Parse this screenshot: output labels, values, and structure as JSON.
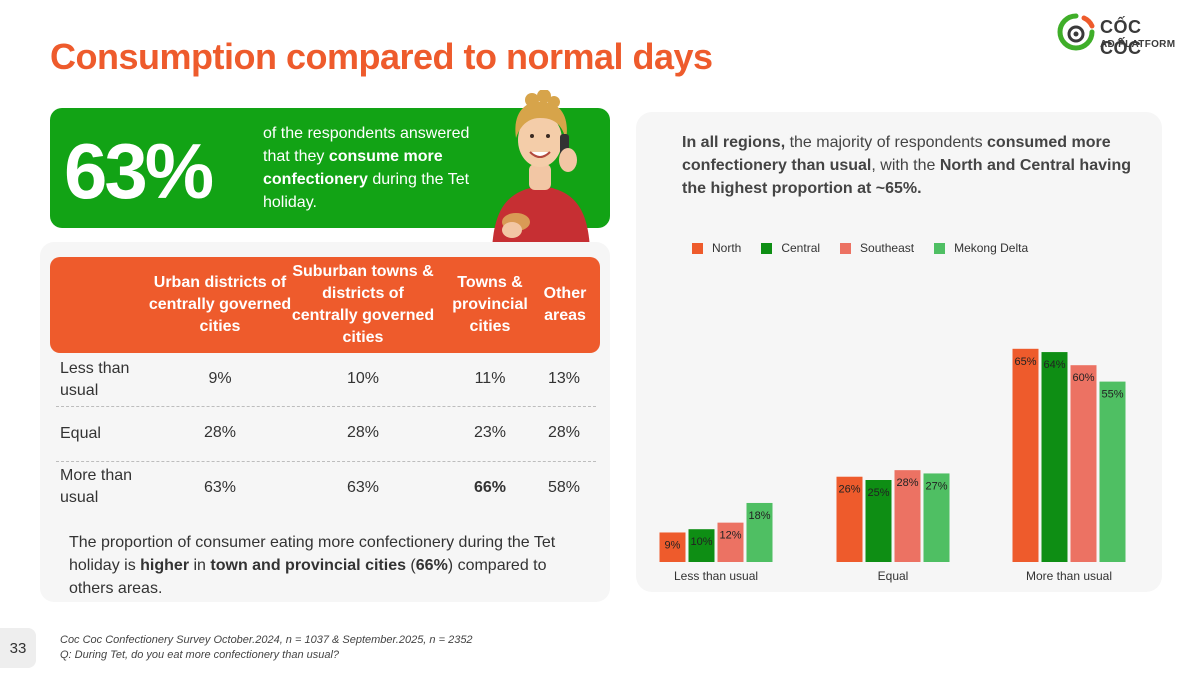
{
  "header": {
    "title": "Consumption compared to normal days"
  },
  "logo": {
    "name": "CỐC CỐC",
    "sub": "AD PLATFORM"
  },
  "hero": {
    "percent": "63%",
    "text_pre": "of the respondents answered that they ",
    "text_bold": "consume more confectionery",
    "text_post": " during the Tet holiday."
  },
  "table": {
    "columns": [
      "Urban districts of centrally governed cities",
      "Suburban towns & districts of centrally governed cities",
      "Towns & provincial cities",
      "Other areas"
    ],
    "rows": [
      {
        "label": "Less than usual",
        "values": [
          "9%",
          "10%",
          "11%",
          "13%"
        ]
      },
      {
        "label": "Equal",
        "values": [
          "28%",
          "28%",
          "23%",
          "28%"
        ]
      },
      {
        "label": "More than usual",
        "values": [
          "63%",
          "63%",
          "66%",
          "58%"
        ]
      }
    ]
  },
  "note": {
    "pre": "The proportion of consumer eating more confectionery during the Tet holiday is ",
    "b1": "higher",
    "mid": " in ",
    "b2": "town and provincial cities",
    "mid2": " (",
    "b3": "66%",
    "post": ") compared to others areas."
  },
  "footer": {
    "page": "33",
    "source_1": "Coc Coc Confectionery Survey October.2024, n = 1037 & September.2025, n = 2352",
    "source_2": "Q: During Tet, do you eat more confectionery than usual?"
  },
  "chart_text": {
    "b1": "In all regions,",
    "t1": " the majority of respondents ",
    "b2": "consumed more confectionery than usual",
    "t2": ", with the ",
    "b3": "North and Central having the highest proportion at ~65%."
  },
  "chart_data": {
    "type": "bar",
    "categories": [
      "Less than usual",
      "Equal",
      "More than usual"
    ],
    "series": [
      {
        "name": "North",
        "color": "#ee5b2c",
        "values": [
          9,
          26,
          65
        ]
      },
      {
        "name": "Central",
        "color": "#0e8e14",
        "values": [
          10,
          25,
          64
        ]
      },
      {
        "name": "Southeast",
        "color": "#ec7263",
        "values": [
          12,
          28,
          60
        ]
      },
      {
        "name": "Mekong Delta",
        "color": "#4fbf63",
        "values": [
          18,
          27,
          55
        ]
      }
    ],
    "value_suffix": "%",
    "ylim": [
      0,
      70
    ],
    "legend": "top"
  }
}
